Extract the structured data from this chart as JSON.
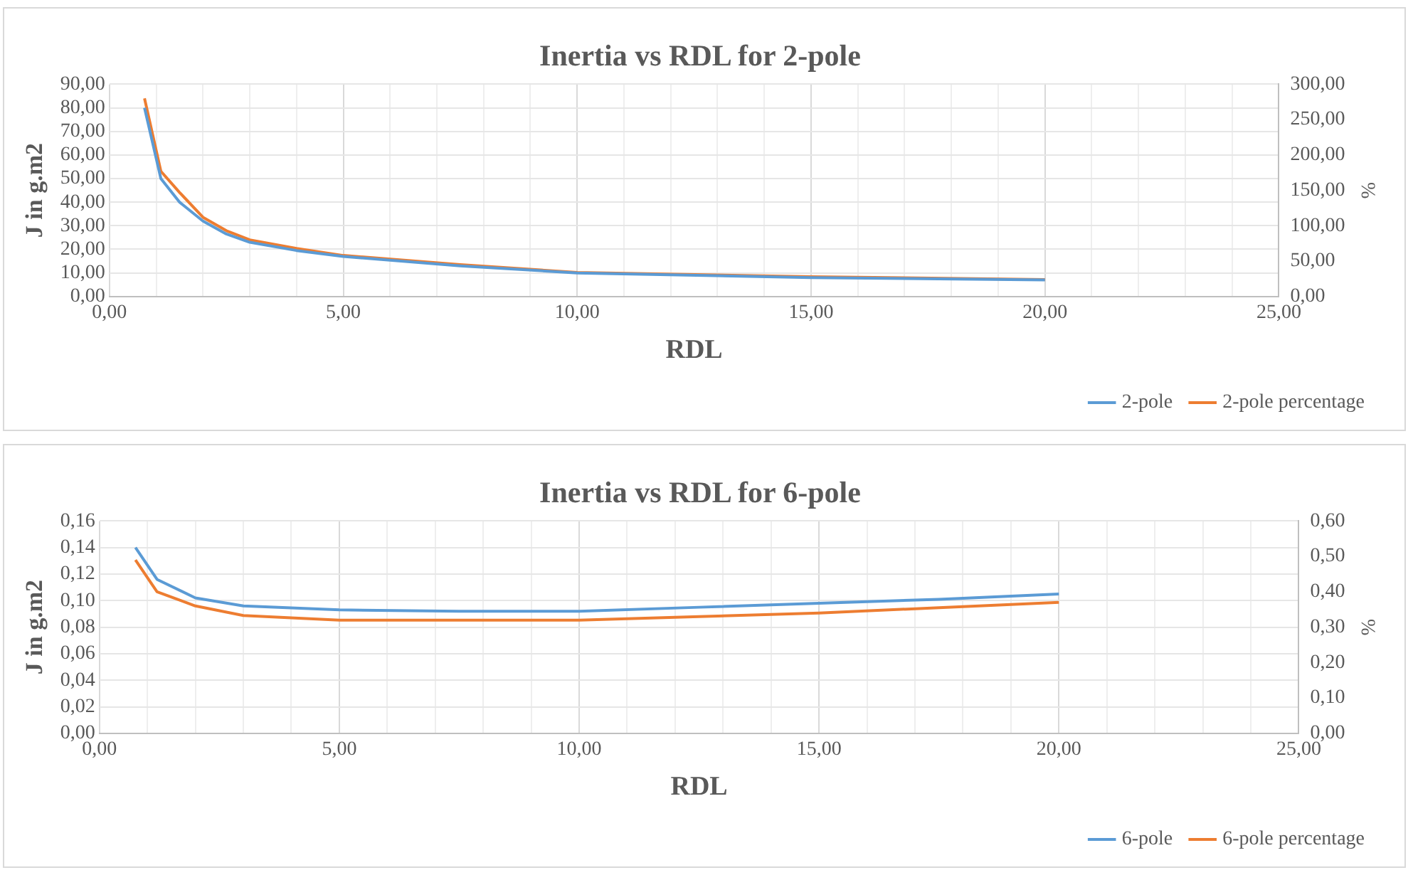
{
  "chart_data": [
    {
      "type": "line",
      "title": "Inertia vs RDL for 2-pole",
      "xlabel": "RDL",
      "ylabel": "J in g.m2",
      "y2label": "%",
      "x": [
        0.75,
        1.1,
        1.5,
        2,
        2.5,
        3,
        4,
        5,
        7.5,
        10,
        15,
        20
      ],
      "series": [
        {
          "name": "2-pole",
          "color": "#5b9bd5",
          "values": [
            80,
            50,
            40,
            32,
            26.5,
            23,
            19.5,
            17,
            13,
            10,
            8,
            7
          ]
        },
        {
          "name": "2-pole percentage",
          "color": "#ed7d31",
          "axis": "y2",
          "values": [
            280,
            177,
            147,
            112,
            93,
            80,
            68,
            58,
            45,
            34,
            28,
            24
          ]
        }
      ],
      "xlim": [
        0,
        25
      ],
      "xticks": [
        {
          "value": 0,
          "label": "0,00"
        },
        {
          "value": 1,
          "label": null
        },
        {
          "value": 2,
          "label": null
        },
        {
          "value": 3,
          "label": null
        },
        {
          "value": 4,
          "label": null
        },
        {
          "value": 5,
          "label": "5,00"
        },
        {
          "value": 6,
          "label": null
        },
        {
          "value": 7,
          "label": null
        },
        {
          "value": 8,
          "label": null
        },
        {
          "value": 9,
          "label": null
        },
        {
          "value": 10,
          "label": "10,00"
        },
        {
          "value": 11,
          "label": null
        },
        {
          "value": 12,
          "label": null
        },
        {
          "value": 13,
          "label": null
        },
        {
          "value": 14,
          "label": null
        },
        {
          "value": 15,
          "label": "15,00"
        },
        {
          "value": 16,
          "label": null
        },
        {
          "value": 17,
          "label": null
        },
        {
          "value": 18,
          "label": null
        },
        {
          "value": 19,
          "label": null
        },
        {
          "value": 20,
          "label": "20,00"
        },
        {
          "value": 21,
          "label": null
        },
        {
          "value": 22,
          "label": null
        },
        {
          "value": 23,
          "label": null
        },
        {
          "value": 24,
          "label": null
        },
        {
          "value": 25,
          "label": "25,00"
        }
      ],
      "ylim": [
        0,
        90
      ],
      "yticks": [
        {
          "value": 0,
          "label": "0,00"
        },
        {
          "value": 10,
          "label": "10,00"
        },
        {
          "value": 20,
          "label": "20,00"
        },
        {
          "value": 30,
          "label": "30,00"
        },
        {
          "value": 40,
          "label": "40,00"
        },
        {
          "value": 50,
          "label": "50,00"
        },
        {
          "value": 60,
          "label": "60,00"
        },
        {
          "value": 70,
          "label": "70,00"
        },
        {
          "value": 80,
          "label": "80,00"
        },
        {
          "value": 90,
          "label": "90,00"
        }
      ],
      "y2lim": [
        0,
        300
      ],
      "y2ticks": [
        {
          "value": 0,
          "label": "0,00"
        },
        {
          "value": 50,
          "label": "50,00"
        },
        {
          "value": 100,
          "label": "100,00"
        },
        {
          "value": 150,
          "label": "150,00"
        },
        {
          "value": 200,
          "label": "200,00"
        },
        {
          "value": 250,
          "label": "250,00"
        },
        {
          "value": 300,
          "label": "300,00"
        }
      ],
      "grid": true,
      "legend": "bottom right",
      "marker": "none",
      "line_style": "solid"
    },
    {
      "type": "line",
      "title": "Inertia vs RDL for 6-pole",
      "xlabel": "RDL",
      "ylabel": "J in g.m2",
      "y2label": "%",
      "x": [
        0.75,
        1.2,
        2,
        3,
        5,
        7.5,
        10,
        12.5,
        15,
        17.5,
        20
      ],
      "series": [
        {
          "name": "6-pole",
          "color": "#5b9bd5",
          "values": [
            0.14,
            0.116,
            0.102,
            0.096,
            0.093,
            0.092,
            0.092,
            0.095,
            0.098,
            0.101,
            0.105
          ]
        },
        {
          "name": "6-pole percentage",
          "color": "#ed7d31",
          "axis": "y2",
          "values": [
            0.49,
            0.4,
            0.36,
            0.333,
            0.32,
            0.32,
            0.32,
            0.33,
            0.34,
            0.355,
            0.37
          ]
        }
      ],
      "xlim": [
        0,
        25
      ],
      "xticks": [
        {
          "value": 0,
          "label": "0,00"
        },
        {
          "value": 1,
          "label": null
        },
        {
          "value": 2,
          "label": null
        },
        {
          "value": 3,
          "label": null
        },
        {
          "value": 4,
          "label": null
        },
        {
          "value": 5,
          "label": "5,00"
        },
        {
          "value": 6,
          "label": null
        },
        {
          "value": 7,
          "label": null
        },
        {
          "value": 8,
          "label": null
        },
        {
          "value": 9,
          "label": null
        },
        {
          "value": 10,
          "label": "10,00"
        },
        {
          "value": 11,
          "label": null
        },
        {
          "value": 12,
          "label": null
        },
        {
          "value": 13,
          "label": null
        },
        {
          "value": 14,
          "label": null
        },
        {
          "value": 15,
          "label": "15,00"
        },
        {
          "value": 16,
          "label": null
        },
        {
          "value": 17,
          "label": null
        },
        {
          "value": 18,
          "label": null
        },
        {
          "value": 19,
          "label": null
        },
        {
          "value": 20,
          "label": "20,00"
        },
        {
          "value": 21,
          "label": null
        },
        {
          "value": 22,
          "label": null
        },
        {
          "value": 23,
          "label": null
        },
        {
          "value": 24,
          "label": null
        },
        {
          "value": 25,
          "label": "25,00"
        }
      ],
      "ylim": [
        0,
        0.16
      ],
      "yticks": [
        {
          "value": 0,
          "label": "0,00"
        },
        {
          "value": 0.02,
          "label": "0,02"
        },
        {
          "value": 0.04,
          "label": "0,04"
        },
        {
          "value": 0.06,
          "label": "0,06"
        },
        {
          "value": 0.08,
          "label": "0,08"
        },
        {
          "value": 0.1,
          "label": "0,10"
        },
        {
          "value": 0.12,
          "label": "0,12"
        },
        {
          "value": 0.14,
          "label": "0,14"
        },
        {
          "value": 0.16,
          "label": "0,16"
        }
      ],
      "y2lim": [
        0,
        0.6
      ],
      "y2ticks": [
        {
          "value": 0,
          "label": "0,00"
        },
        {
          "value": 0.1,
          "label": "0,10"
        },
        {
          "value": 0.2,
          "label": "0,20"
        },
        {
          "value": 0.3,
          "label": "0,30"
        },
        {
          "value": 0.4,
          "label": "0,40"
        },
        {
          "value": 0.5,
          "label": "0,50"
        },
        {
          "value": 0.6,
          "label": "0,60"
        }
      ],
      "grid": true,
      "legend": "bottom right",
      "marker": "none",
      "line_style": "solid"
    }
  ]
}
